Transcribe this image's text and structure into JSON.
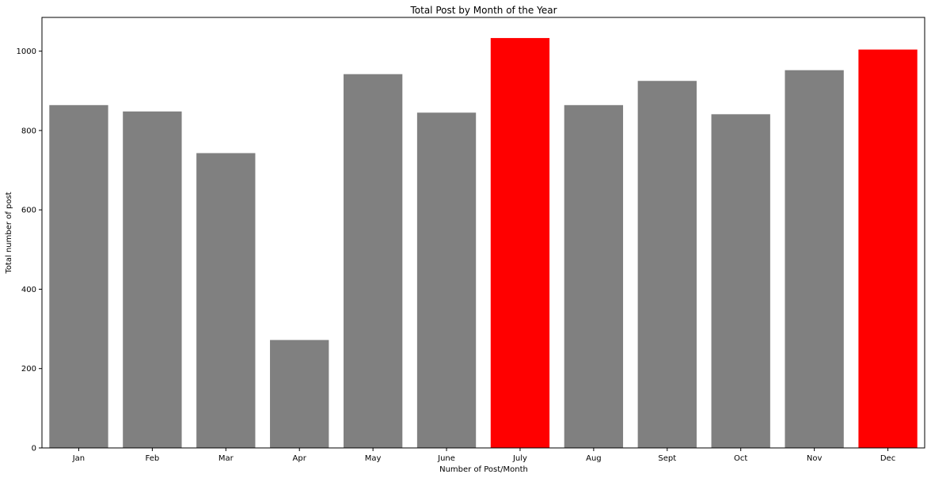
{
  "chart_data": {
    "type": "bar",
    "title": "Total Post by Month of the Year",
    "xlabel": "Number of Post/Month",
    "ylabel": "Total number of post",
    "categories": [
      "Jan",
      "Feb",
      "Mar",
      "Apr",
      "May",
      "June",
      "July",
      "Aug",
      "Sept",
      "Oct",
      "Nov",
      "Dec"
    ],
    "values": [
      864,
      848,
      743,
      272,
      942,
      845,
      1033,
      864,
      925,
      841,
      952,
      1004
    ],
    "bar_colors": [
      "#808080",
      "#808080",
      "#808080",
      "#808080",
      "#808080",
      "#808080",
      "#ff0000",
      "#808080",
      "#808080",
      "#808080",
      "#808080",
      "#ff0000"
    ],
    "ylim": [
      0,
      1085
    ],
    "yticks": [
      0,
      200,
      400,
      600,
      800,
      1000
    ],
    "grid": false,
    "legend": "none"
  }
}
